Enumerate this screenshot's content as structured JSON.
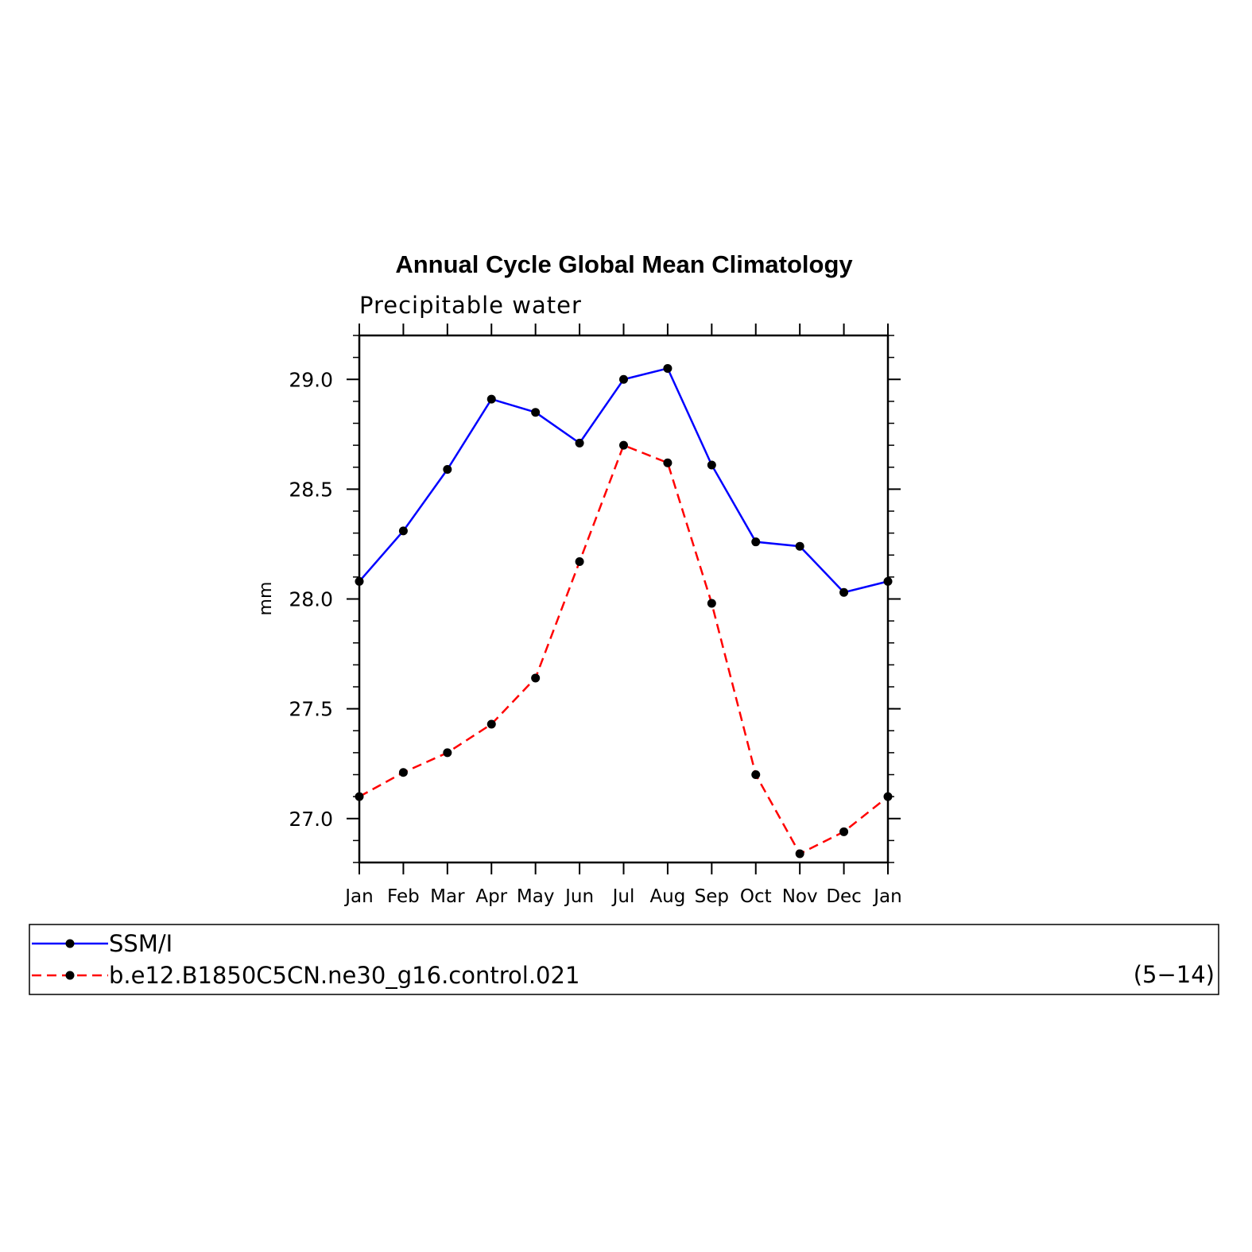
{
  "chart_data": {
    "type": "line",
    "title": "Annual Cycle Global Mean Climatology",
    "subtitle": "Precipitable water",
    "xlabel": "",
    "ylabel": "mm",
    "categories": [
      "Jan",
      "Feb",
      "Mar",
      "Apr",
      "May",
      "Jun",
      "Jul",
      "Aug",
      "Sep",
      "Oct",
      "Nov",
      "Dec",
      "Jan"
    ],
    "ylim": [
      26.8,
      29.2
    ],
    "yticks": [
      27.0,
      27.5,
      28.0,
      28.5,
      29.0
    ],
    "ytick_labels": [
      "27.0",
      "27.5",
      "28.0",
      "28.5",
      "29.0"
    ],
    "grid": false,
    "legend_position": "bottom",
    "series": [
      {
        "name": "SSM/I",
        "color": "#0000ff",
        "line_style": "solid",
        "marker": "filled-circle",
        "values": [
          28.08,
          28.31,
          28.59,
          28.91,
          28.85,
          28.71,
          29.0,
          29.05,
          28.61,
          28.26,
          28.24,
          28.03,
          28.08
        ]
      },
      {
        "name": "b.e12.B1850C5CN.ne30_g16.control.021",
        "color": "#ff0000",
        "line_style": "dashed",
        "marker": "filled-circle",
        "values": [
          27.1,
          27.21,
          27.3,
          27.43,
          27.64,
          28.17,
          28.7,
          28.62,
          27.98,
          27.2,
          26.84,
          26.94,
          27.1
        ]
      }
    ],
    "annotation": "(5−14)"
  }
}
